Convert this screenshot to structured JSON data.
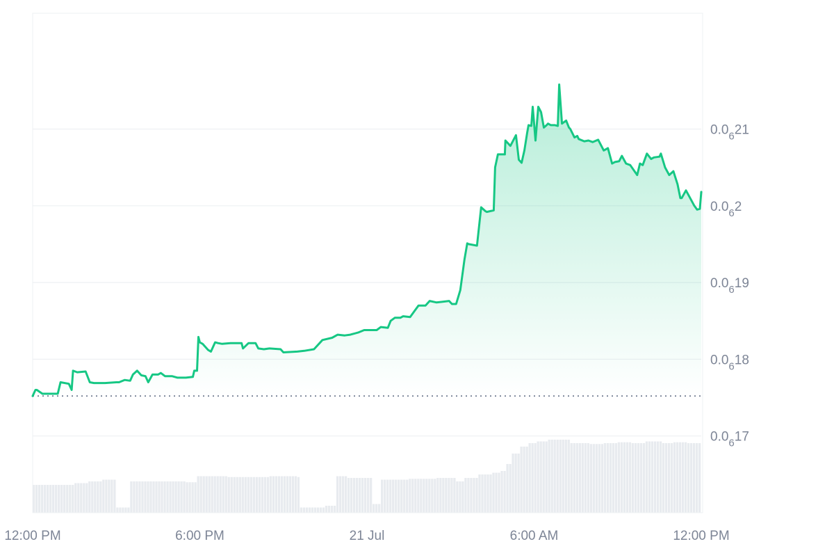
{
  "chart_data": {
    "type": "area",
    "colors": {
      "line": "#16c784",
      "fill_top": "#16c784",
      "volume": "#e8ebef",
      "grid": "#eef0f3",
      "baseline": "#58667e",
      "tick_text": "#7d8596"
    },
    "y_ticks": [
      {
        "value": 2.1e-07,
        "prefix": "0.0",
        "sub": "6",
        "suffix": "21"
      },
      {
        "value": 2e-07,
        "prefix": "0.0",
        "sub": "6",
        "suffix": "2"
      },
      {
        "value": 1.9e-07,
        "prefix": "0.0",
        "sub": "6",
        "suffix": "19"
      },
      {
        "value": 1.8e-07,
        "prefix": "0.0",
        "sub": "6",
        "suffix": "18"
      },
      {
        "value": 1.7e-07,
        "prefix": "0.0",
        "sub": "6",
        "suffix": "17"
      }
    ],
    "x_ticks": [
      {
        "t": 0,
        "label": "12:00 PM"
      },
      {
        "t": 6,
        "label": "6:00 PM"
      },
      {
        "t": 12,
        "label": "21 Jul"
      },
      {
        "t": 18,
        "label": "6:00 AM"
      },
      {
        "t": 24,
        "label": "12:00 PM"
      }
    ],
    "x_range_hours": [
      0,
      24
    ],
    "y_range": [
      1.6e-07,
      2.25e-07
    ],
    "baseline_value": 1.752e-07,
    "price_series": {
      "t": [
        0,
        0.1,
        0.15,
        0.35,
        0.5,
        0.9,
        1.0,
        1.3,
        1.4,
        1.45,
        1.6,
        1.9,
        2.05,
        2.2,
        2.6,
        3.0,
        3.1,
        3.3,
        3.5,
        3.6,
        3.75,
        3.9,
        4.05,
        4.15,
        4.3,
        4.5,
        4.6,
        4.75,
        5.0,
        5.2,
        5.3,
        5.5,
        5.75,
        5.8,
        5.9,
        5.95,
        6.0,
        6.1,
        6.3,
        6.4,
        6.55,
        6.65,
        6.8,
        7.1,
        7.5,
        7.55,
        7.75,
        8.0,
        8.1,
        8.3,
        8.5,
        8.9,
        9.0,
        9.5,
        9.75,
        10.1,
        10.4,
        10.75,
        10.95,
        11.2,
        11.4,
        11.7,
        11.9,
        12.35,
        12.5,
        12.75,
        12.85,
        13.0,
        13.2,
        13.3,
        13.55,
        13.75,
        13.85,
        14.1,
        14.25,
        14.5,
        14.95,
        15.05,
        15.2,
        15.35,
        15.5,
        15.6,
        15.65,
        15.8,
        15.95,
        16.1,
        16.25,
        16.3,
        16.55,
        16.6,
        16.7,
        16.95,
        16.97,
        17.15,
        17.35,
        17.45,
        17.55,
        17.65,
        17.75,
        17.8,
        17.9,
        17.95,
        18.05,
        18.15,
        18.25,
        18.35,
        18.45,
        18.5,
        18.6,
        18.75,
        18.85,
        18.9,
        19.0,
        19.15,
        19.25,
        19.3,
        19.45,
        19.55,
        19.6,
        19.8,
        19.95,
        20.1,
        20.3,
        20.5,
        20.65,
        20.8,
        20.9,
        21.05,
        21.15,
        21.3,
        21.45,
        21.7,
        21.8,
        21.9,
        22.05,
        22.2,
        22.3,
        22.5,
        22.55,
        22.7,
        22.85,
        23.0,
        23.15,
        23.25,
        23.3,
        23.45,
        23.6,
        23.75,
        23.85,
        23.95,
        24.0
      ],
      "price": [
        1.752e-07,
        1.76e-07,
        1.76e-07,
        1.755e-07,
        1.755e-07,
        1.755e-07,
        1.77e-07,
        1.768e-07,
        1.76e-07,
        1.785e-07,
        1.783e-07,
        1.784e-07,
        1.77e-07,
        1.769e-07,
        1.769e-07,
        1.77e-07,
        1.77e-07,
        1.773e-07,
        1.772e-07,
        1.78e-07,
        1.785e-07,
        1.779e-07,
        1.778e-07,
        1.77e-07,
        1.78e-07,
        1.78e-07,
        1.782e-07,
        1.778e-07,
        1.778e-07,
        1.776e-07,
        1.776e-07,
        1.776e-07,
        1.777e-07,
        1.785e-07,
        1.785e-07,
        1.829e-07,
        1.822e-07,
        1.82e-07,
        1.812e-07,
        1.81e-07,
        1.822e-07,
        1.821e-07,
        1.82e-07,
        1.821e-07,
        1.821e-07,
        1.814e-07,
        1.821e-07,
        1.821e-07,
        1.814e-07,
        1.813e-07,
        1.814e-07,
        1.813e-07,
        1.809e-07,
        1.81e-07,
        1.811e-07,
        1.813e-07,
        1.825e-07,
        1.828e-07,
        1.832e-07,
        1.831e-07,
        1.832e-07,
        1.835e-07,
        1.838e-07,
        1.838e-07,
        1.842e-07,
        1.841e-07,
        1.85e-07,
        1.854e-07,
        1.854e-07,
        1.856e-07,
        1.855e-07,
        1.865e-07,
        1.87e-07,
        1.87e-07,
        1.876e-07,
        1.874e-07,
        1.876e-07,
        1.872e-07,
        1.872e-07,
        1.89e-07,
        1.93e-07,
        1.951e-07,
        1.95e-07,
        1.949e-07,
        1.948e-07,
        1.998e-07,
        1.993e-07,
        1.992e-07,
        1.994e-07,
        2.05e-07,
        2.067e-07,
        2.067e-07,
        2.085e-07,
        2.078e-07,
        2.092e-07,
        2.06e-07,
        2.056e-07,
        2.072e-07,
        2.095e-07,
        2.105e-07,
        2.104e-07,
        2.129e-07,
        2.085e-07,
        2.129e-07,
        2.122e-07,
        2.102e-07,
        2.105e-07,
        2.107e-07,
        2.105e-07,
        2.105e-07,
        2.104e-07,
        2.158e-07,
        2.107e-07,
        2.111e-07,
        2.102e-07,
        2.1e-07,
        2.089e-07,
        2.091e-07,
        2.087e-07,
        2.084e-07,
        2.085e-07,
        2.083e-07,
        2.086e-07,
        2.072e-07,
        2.075e-07,
        2.055e-07,
        2.057e-07,
        2.058e-07,
        2.065e-07,
        2.055e-07,
        2.053e-07,
        2.04e-07,
        2.055e-07,
        2.053e-07,
        2.068e-07,
        2.061e-07,
        2.063e-07,
        2.064e-07,
        2.068e-07,
        2.05e-07,
        2.04e-07,
        2.045e-07,
        2.028e-07,
        2.01e-07,
        2.01e-07,
        2.02e-07,
        2.01e-07,
        2e-07,
        1.995e-07,
        1.996e-07,
        2.018e-07
      ]
    },
    "volume_series": {
      "t": [
        0,
        1.3,
        1.55,
        2.0,
        2.5,
        3.0,
        3.5,
        4.5,
        5.5,
        5.9,
        6.6,
        7.0,
        7.6,
        8.2,
        8.5,
        9.0,
        9.5,
        9.6,
        10.5,
        10.9,
        11.3,
        11.7,
        12.25,
        12.5,
        13.5,
        14.5,
        15.2,
        15.5,
        16.0,
        16.5,
        16.8,
        17.0,
        17.2,
        17.5,
        17.8,
        18.1,
        18.5,
        19.0,
        19.3,
        20.0,
        20.5,
        21.0,
        21.5,
        22.0,
        22.6,
        23.0,
        23.5,
        24.0
      ],
      "volume": [
        0.32,
        0.32,
        0.34,
        0.36,
        0.38,
        0.06,
        0.36,
        0.36,
        0.35,
        0.42,
        0.42,
        0.41,
        0.41,
        0.41,
        0.42,
        0.42,
        0.41,
        0.06,
        0.08,
        0.42,
        0.4,
        0.4,
        0.1,
        0.38,
        0.39,
        0.4,
        0.36,
        0.4,
        0.44,
        0.46,
        0.48,
        0.56,
        0.68,
        0.76,
        0.8,
        0.82,
        0.84,
        0.84,
        0.8,
        0.79,
        0.8,
        0.81,
        0.8,
        0.82,
        0.8,
        0.81,
        0.8,
        0.82
      ]
    }
  }
}
